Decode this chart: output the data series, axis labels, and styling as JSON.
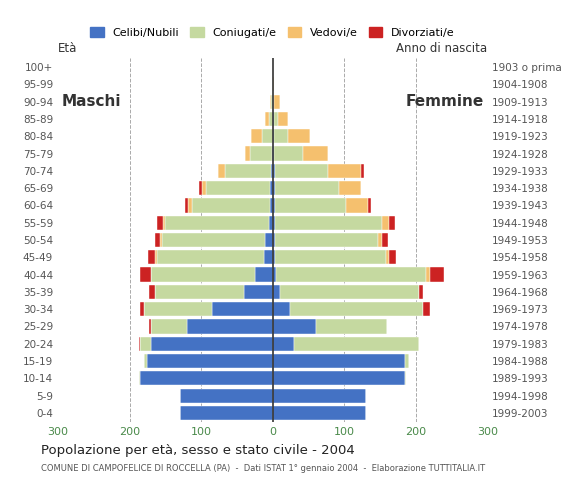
{
  "age_groups": [
    "0-4",
    "5-9",
    "10-14",
    "15-19",
    "20-24",
    "25-29",
    "30-34",
    "35-39",
    "40-44",
    "45-49",
    "50-54",
    "55-59",
    "60-64",
    "65-69",
    "70-74",
    "75-79",
    "80-84",
    "85-89",
    "90-94",
    "95-99",
    "100+"
  ],
  "birth_years": [
    "1999-2003",
    "1994-1998",
    "1989-1993",
    "1984-1988",
    "1979-1983",
    "1974-1978",
    "1969-1973",
    "1964-1968",
    "1959-1963",
    "1954-1958",
    "1949-1953",
    "1944-1948",
    "1939-1943",
    "1934-1938",
    "1929-1933",
    "1924-1928",
    "1919-1923",
    "1914-1918",
    "1909-1913",
    "1904-1908",
    "1903 o prima"
  ],
  "males": {
    "celibe": [
      130,
      130,
      185,
      175,
      170,
      120,
      85,
      40,
      25,
      12,
      10,
      5,
      3,
      3,
      2,
      1,
      0,
      0,
      0,
      0,
      0
    ],
    "coniugato": [
      0,
      0,
      2,
      5,
      15,
      50,
      95,
      125,
      145,
      150,
      145,
      145,
      110,
      90,
      65,
      30,
      15,
      5,
      2,
      0,
      0
    ],
    "vedovo": [
      0,
      0,
      0,
      0,
      0,
      0,
      0,
      0,
      0,
      2,
      2,
      3,
      5,
      5,
      10,
      8,
      15,
      5,
      2,
      0,
      0
    ],
    "divorziato": [
      0,
      0,
      0,
      0,
      2,
      3,
      5,
      8,
      15,
      10,
      8,
      8,
      5,
      5,
      0,
      0,
      0,
      0,
      0,
      0,
      0
    ]
  },
  "females": {
    "nubile": [
      130,
      130,
      185,
      185,
      30,
      60,
      25,
      10,
      5,
      3,
      3,
      3,
      3,
      3,
      3,
      2,
      2,
      2,
      0,
      0,
      0
    ],
    "coniugata": [
      0,
      0,
      2,
      5,
      175,
      100,
      185,
      195,
      210,
      155,
      145,
      150,
      100,
      90,
      75,
      40,
      20,
      5,
      2,
      0,
      0
    ],
    "vedova": [
      0,
      0,
      0,
      0,
      0,
      0,
      0,
      0,
      5,
      5,
      5,
      10,
      30,
      30,
      45,
      35,
      30,
      15,
      8,
      2,
      0
    ],
    "divorziata": [
      0,
      0,
      0,
      0,
      0,
      0,
      10,
      5,
      20,
      10,
      8,
      8,
      5,
      0,
      5,
      0,
      0,
      0,
      0,
      0,
      0
    ]
  },
  "colors": {
    "celibe": "#4472c4",
    "coniugato": "#c5d9a0",
    "vedovo": "#f5c06e",
    "divorziato": "#cc2222"
  },
  "xlim": 300,
  "title": "Popolazione per età, sesso e stato civile - 2004",
  "subtitle": "COMUNE DI CAMPOFELICE DI ROCCELLA (PA)  -  Dati ISTAT 1° gennaio 2004  -  Elaborazione TUTTITALIA.IT",
  "ylabel_left": "Età",
  "ylabel_right": "Anno di nascita",
  "legend_labels": [
    "Celibi/Nubili",
    "Coniugati/e",
    "Vedovi/e",
    "Divorziati/e"
  ],
  "background_color": "#ffffff",
  "grid_color": "#aaaaaa"
}
